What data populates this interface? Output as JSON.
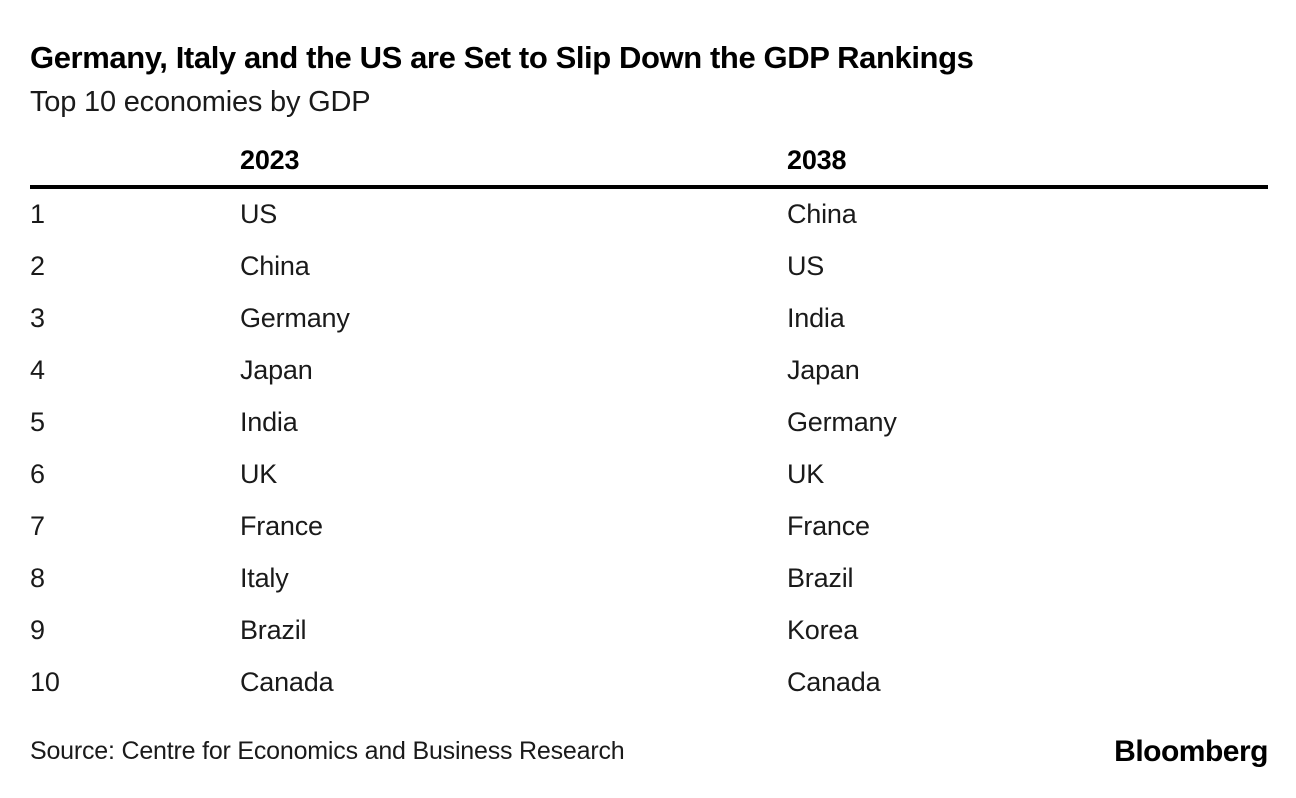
{
  "chart_data": {
    "type": "table",
    "title": "Germany, Italy and the US are Set to Slip Down the GDP Rankings",
    "subtitle": "Top 10 economies by GDP",
    "columns": [
      "",
      "2023",
      "2038"
    ],
    "rows": [
      {
        "rank": "1",
        "y2023": "US",
        "y2038": "China"
      },
      {
        "rank": "2",
        "y2023": "China",
        "y2038": "US"
      },
      {
        "rank": "3",
        "y2023": "Germany",
        "y2038": "India"
      },
      {
        "rank": "4",
        "y2023": "Japan",
        "y2038": "Japan"
      },
      {
        "rank": "5",
        "y2023": "India",
        "y2038": "Germany"
      },
      {
        "rank": "6",
        "y2023": "UK",
        "y2038": "UK"
      },
      {
        "rank": "7",
        "y2023": "France",
        "y2038": "France"
      },
      {
        "rank": "8",
        "y2023": "Italy",
        "y2038": "Brazil"
      },
      {
        "rank": "9",
        "y2023": "Brazil",
        "y2038": "Korea"
      },
      {
        "rank": "10",
        "y2023": "Canada",
        "y2038": "Canada"
      }
    ],
    "layout": {
      "legend": "none",
      "grid": "none",
      "header_rule": "thick-black"
    }
  },
  "footer": {
    "source": "Source: Centre for Economics and Business Research",
    "brand": "Bloomberg"
  },
  "colors": {
    "background": "#ffffff",
    "title_text": "#000000",
    "body_text": "#1a1a1a",
    "header_rule": "#000000"
  }
}
